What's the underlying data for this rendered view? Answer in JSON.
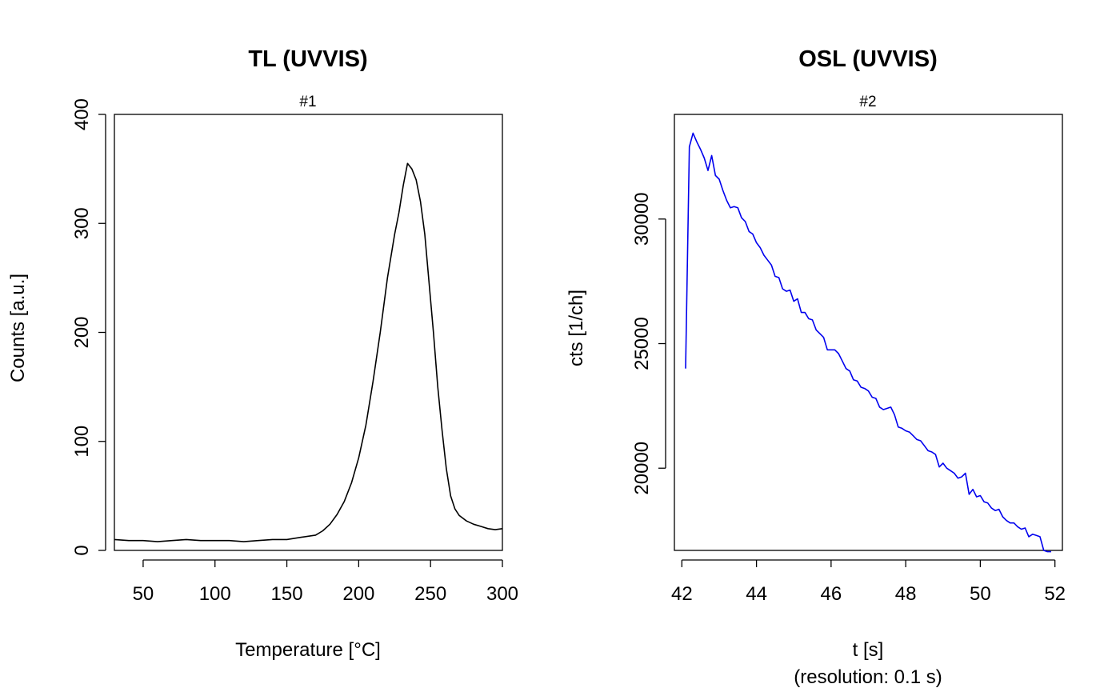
{
  "chart_data": [
    {
      "type": "line",
      "title": "TL (UVVIS)",
      "subtitle": "#1",
      "xlabel": "Temperature [°C]",
      "ylabel": "Counts [a.u.]",
      "xlim": [
        30,
        300
      ],
      "ylim": [
        0,
        400
      ],
      "xticks": [
        50,
        100,
        150,
        200,
        250,
        300
      ],
      "yticks": [
        0,
        100,
        200,
        300,
        400
      ],
      "series": [
        {
          "color": "#000000",
          "x": [
            30,
            40,
            50,
            60,
            70,
            80,
            90,
            100,
            110,
            120,
            130,
            140,
            150,
            160,
            170,
            175,
            180,
            185,
            190,
            195,
            200,
            205,
            210,
            215,
            220,
            225,
            228,
            231,
            234,
            237,
            240,
            243,
            246,
            249,
            252,
            255,
            258,
            261,
            264,
            267,
            270,
            275,
            280,
            285,
            290,
            295,
            300
          ],
          "values": [
            10,
            9,
            9,
            8,
            9,
            10,
            9,
            9,
            9,
            8,
            9,
            10,
            10,
            12,
            14,
            18,
            24,
            33,
            45,
            62,
            85,
            115,
            155,
            200,
            250,
            290,
            310,
            335,
            355,
            350,
            340,
            320,
            290,
            245,
            200,
            150,
            110,
            75,
            50,
            38,
            32,
            27,
            24,
            22,
            20,
            19,
            20
          ]
        }
      ]
    },
    {
      "type": "line",
      "title": "OSL (UVVIS)",
      "subtitle": "#2",
      "xlabel": "t [s]",
      "xlabel_note": "(resolution: 0.1 s)",
      "ylabel": "cts [1/ch]",
      "xlim": [
        41.8,
        52.2
      ],
      "ylim": [
        16700,
        34200
      ],
      "xticks": [
        42,
        44,
        46,
        48,
        50,
        52
      ],
      "yticks": [
        20000,
        25000,
        30000
      ],
      "grid": false,
      "series": [
        {
          "color": "#0000ee",
          "x": [
            42.1,
            42.2,
            42.3,
            42.4,
            42.5,
            42.6,
            42.7,
            42.8,
            42.9,
            43.0,
            43.1,
            43.2,
            43.3,
            43.4,
            43.5,
            43.6,
            43.7,
            43.8,
            43.9,
            44.0,
            44.1,
            44.2,
            44.3,
            44.4,
            44.5,
            44.6,
            44.7,
            44.8,
            44.9,
            45.0,
            45.1,
            45.2,
            45.3,
            45.4,
            45.5,
            45.6,
            45.7,
            45.8,
            45.9,
            46.0,
            46.1,
            46.2,
            46.3,
            46.4,
            46.5,
            46.6,
            46.7,
            46.8,
            46.9,
            47.0,
            47.1,
            47.2,
            47.3,
            47.4,
            47.5,
            47.6,
            47.7,
            47.8,
            47.9,
            48.0,
            48.1,
            48.2,
            48.3,
            48.4,
            48.5,
            48.6,
            48.7,
            48.8,
            48.9,
            49.0,
            49.1,
            49.2,
            49.3,
            49.4,
            49.5,
            49.6,
            49.7,
            49.8,
            49.9,
            50.0,
            50.1,
            50.2,
            50.3,
            50.4,
            50.5,
            50.6,
            50.7,
            50.8,
            50.9,
            51.0,
            51.1,
            51.2,
            51.3,
            51.4,
            51.5,
            51.6,
            51.7,
            51.8,
            51.9
          ],
          "values": [
            24000,
            32900,
            33450,
            33100,
            32800,
            32450,
            31950,
            32550,
            31750,
            31600,
            31150,
            30750,
            30450,
            30500,
            30450,
            30050,
            29900,
            29500,
            29400,
            29050,
            28850,
            28550,
            28350,
            28150,
            27700,
            27650,
            27200,
            27100,
            27150,
            26700,
            26800,
            26250,
            26250,
            26000,
            25950,
            25550,
            25400,
            25250,
            24750,
            24750,
            24750,
            24600,
            24300,
            24000,
            23900,
            23550,
            23500,
            23250,
            23200,
            23100,
            22850,
            22800,
            22450,
            22350,
            22400,
            22450,
            22150,
            21650,
            21600,
            21500,
            21450,
            21300,
            21150,
            21100,
            20900,
            20700,
            20650,
            20550,
            20050,
            20200,
            20000,
            19900,
            19800,
            19600,
            19650,
            19800,
            18950,
            19150,
            18850,
            18900,
            18650,
            18600,
            18400,
            18300,
            18350,
            18050,
            17900,
            17800,
            17800,
            17650,
            17550,
            17600,
            17250,
            17350,
            17300,
            17250,
            16700,
            16650,
            16650
          ]
        }
      ]
    }
  ]
}
